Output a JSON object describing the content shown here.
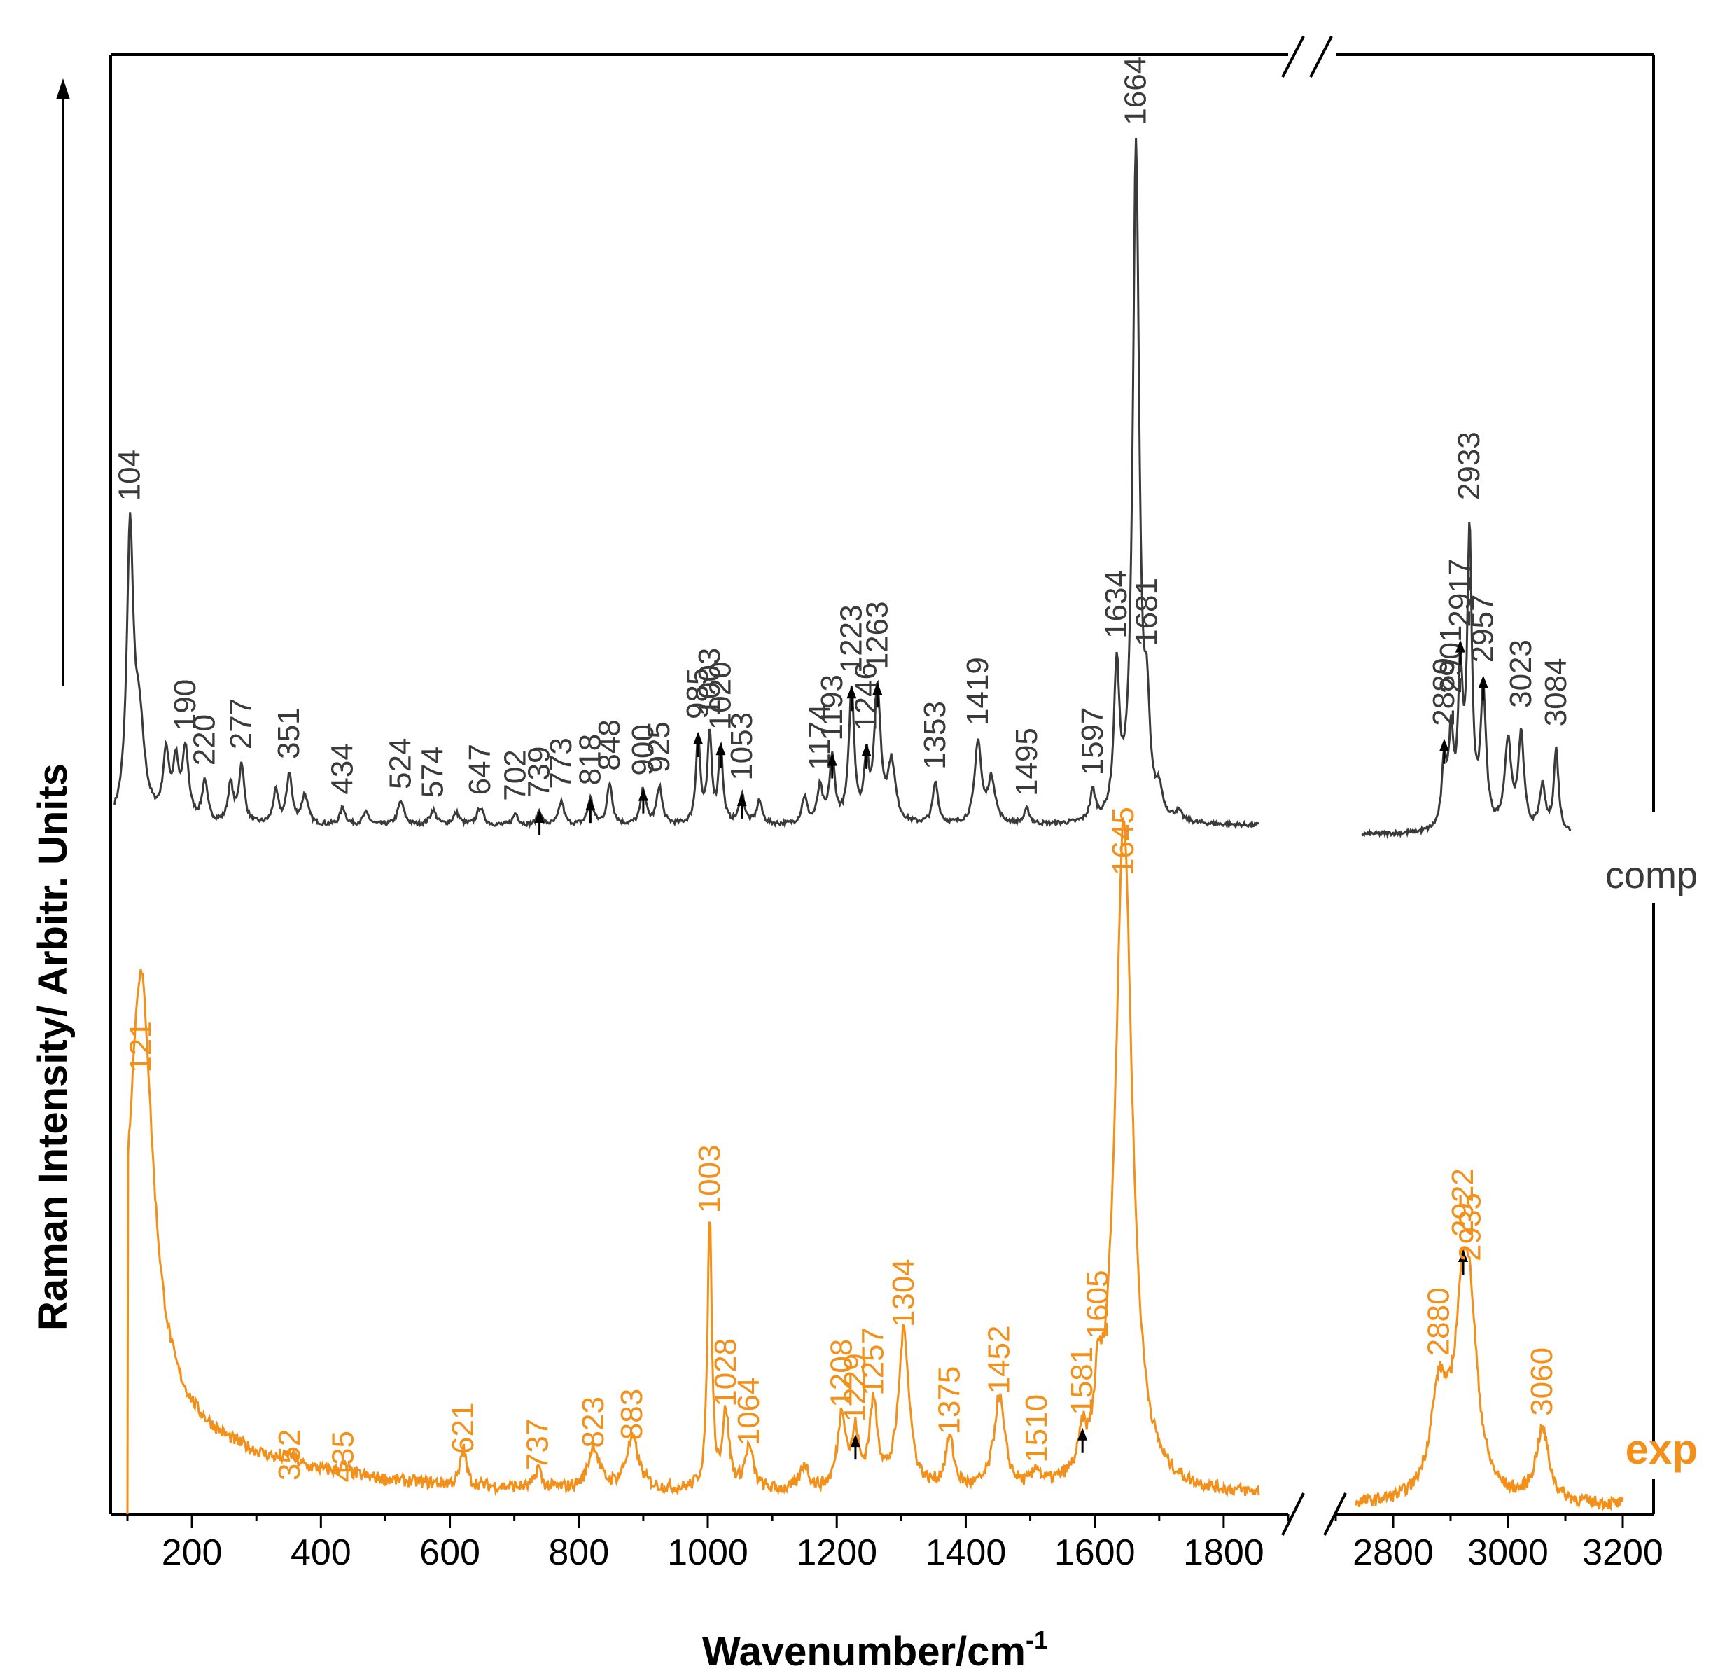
{
  "chart_data": {
    "type": "line",
    "title": "",
    "xlabel": "Wavenumber/cm",
    "xlabel_sup": "-1",
    "ylabel": "Raman Intensity/ Arbitr. Units",
    "xlim": [
      80,
      3250
    ],
    "axis_break": [
      1950,
      2700
    ],
    "x_ticks_left": [
      200,
      400,
      600,
      800,
      1000,
      1200,
      1400,
      1600,
      1800
    ],
    "x_ticks_right": [
      2800,
      3000,
      3200
    ],
    "colors": {
      "comp": "#3a3a3a",
      "exp": "#f39019",
      "axis": "#000000",
      "arrow": "#000000"
    },
    "series": [
      {
        "name": "comp",
        "label": "comp",
        "peaks": [
          {
            "x": 104,
            "h": 0.95,
            "w": 6
          },
          {
            "x": 118,
            "h": 0.32,
            "w": 10
          },
          {
            "x": 160,
            "h": 0.22,
            "w": 6
          },
          {
            "x": 175,
            "h": 0.18,
            "w": 5
          },
          {
            "x": 190,
            "h": 0.24,
            "w": 6
          },
          {
            "x": 220,
            "h": 0.14,
            "w": 5
          },
          {
            "x": 260,
            "h": 0.13,
            "w": 5
          },
          {
            "x": 277,
            "h": 0.2,
            "w": 5
          },
          {
            "x": 330,
            "h": 0.11,
            "w": 5
          },
          {
            "x": 351,
            "h": 0.17,
            "w": 5
          },
          {
            "x": 375,
            "h": 0.1,
            "w": 6
          },
          {
            "x": 434,
            "h": 0.06,
            "w": 5
          },
          {
            "x": 470,
            "h": 0.04,
            "w": 6
          },
          {
            "x": 524,
            "h": 0.08,
            "w": 6
          },
          {
            "x": 574,
            "h": 0.05,
            "w": 6
          },
          {
            "x": 610,
            "h": 0.04,
            "w": 6
          },
          {
            "x": 647,
            "h": 0.06,
            "w": 6
          },
          {
            "x": 702,
            "h": 0.04,
            "w": 5
          },
          {
            "x": 739,
            "h": 0.05,
            "w": 4
          },
          {
            "x": 773,
            "h": 0.08,
            "w": 5
          },
          {
            "x": 818,
            "h": 0.09,
            "w": 5
          },
          {
            "x": 848,
            "h": 0.14,
            "w": 5
          },
          {
            "x": 900,
            "h": 0.12,
            "w": 5
          },
          {
            "x": 925,
            "h": 0.13,
            "w": 5
          },
          {
            "x": 985,
            "h": 0.3,
            "w": 4
          },
          {
            "x": 1003,
            "h": 0.3,
            "w": 4
          },
          {
            "x": 1020,
            "h": 0.26,
            "w": 4
          },
          {
            "x": 1053,
            "h": 0.1,
            "w": 5
          },
          {
            "x": 1080,
            "h": 0.08,
            "w": 5
          },
          {
            "x": 1150,
            "h": 0.09,
            "w": 5
          },
          {
            "x": 1174,
            "h": 0.12,
            "w": 5
          },
          {
            "x": 1193,
            "h": 0.22,
            "w": 5
          },
          {
            "x": 1223,
            "h": 0.45,
            "w": 5
          },
          {
            "x": 1246,
            "h": 0.2,
            "w": 4
          },
          {
            "x": 1263,
            "h": 0.45,
            "w": 6
          },
          {
            "x": 1285,
            "h": 0.2,
            "w": 7
          },
          {
            "x": 1353,
            "h": 0.14,
            "w": 5
          },
          {
            "x": 1419,
            "h": 0.28,
            "w": 6
          },
          {
            "x": 1440,
            "h": 0.15,
            "w": 7
          },
          {
            "x": 1495,
            "h": 0.05,
            "w": 5
          },
          {
            "x": 1597,
            "h": 0.1,
            "w": 5
          },
          {
            "x": 1634,
            "h": 0.5,
            "w": 5
          },
          {
            "x": 1664,
            "h": 2.3,
            "w": 6
          },
          {
            "x": 1681,
            "h": 0.3,
            "w": 5
          },
          {
            "x": 1700,
            "h": 0.08,
            "w": 6
          },
          {
            "x": 1730,
            "h": 0.03,
            "w": 6
          },
          {
            "x": 2889,
            "h": 0.22,
            "w": 5
          },
          {
            "x": 2901,
            "h": 0.3,
            "w": 5
          },
          {
            "x": 2917,
            "h": 0.5,
            "w": 5
          },
          {
            "x": 2933,
            "h": 0.98,
            "w": 5
          },
          {
            "x": 2957,
            "h": 0.45,
            "w": 6
          },
          {
            "x": 3000,
            "h": 0.3,
            "w": 7
          },
          {
            "x": 3023,
            "h": 0.32,
            "w": 6
          },
          {
            "x": 3060,
            "h": 0.15,
            "w": 6
          },
          {
            "x": 3084,
            "h": 0.28,
            "w": 5
          }
        ]
      },
      {
        "name": "exp",
        "label": "exp",
        "peaks": [
          {
            "x": 121,
            "h": 1.0,
            "w": 22
          },
          {
            "x": 352,
            "h": 0.02,
            "w": 8
          },
          {
            "x": 435,
            "h": 0.02,
            "w": 8
          },
          {
            "x": 621,
            "h": 0.09,
            "w": 5
          },
          {
            "x": 737,
            "h": 0.05,
            "w": 5
          },
          {
            "x": 823,
            "h": 0.1,
            "w": 10
          },
          {
            "x": 883,
            "h": 0.12,
            "w": 12
          },
          {
            "x": 1003,
            "h": 0.65,
            "w": 4
          },
          {
            "x": 1028,
            "h": 0.18,
            "w": 6
          },
          {
            "x": 1064,
            "h": 0.1,
            "w": 8
          },
          {
            "x": 1150,
            "h": 0.06,
            "w": 8
          },
          {
            "x": 1208,
            "h": 0.18,
            "w": 8
          },
          {
            "x": 1229,
            "h": 0.12,
            "w": 6
          },
          {
            "x": 1257,
            "h": 0.2,
            "w": 8
          },
          {
            "x": 1304,
            "h": 0.38,
            "w": 10
          },
          {
            "x": 1375,
            "h": 0.12,
            "w": 8
          },
          {
            "x": 1452,
            "h": 0.22,
            "w": 10
          },
          {
            "x": 1510,
            "h": 0.04,
            "w": 6
          },
          {
            "x": 1581,
            "h": 0.08,
            "w": 6
          },
          {
            "x": 1605,
            "h": 0.14,
            "w": 6
          },
          {
            "x": 1645,
            "h": 1.6,
            "w": 16
          },
          {
            "x": 2880,
            "h": 0.24,
            "w": 18
          },
          {
            "x": 2922,
            "h": 0.42,
            "w": 18
          },
          {
            "x": 2935,
            "h": 0.25,
            "w": 16
          },
          {
            "x": 3060,
            "h": 0.17,
            "w": 14
          }
        ]
      }
    ],
    "annotations": {
      "comp": [
        {
          "text": "104",
          "x": 104,
          "tip": 104
        },
        {
          "text": "190",
          "x": 190
        },
        {
          "text": "220",
          "x": 220
        },
        {
          "text": "277",
          "x": 277
        },
        {
          "text": "351",
          "x": 351
        },
        {
          "text": "434",
          "x": 434
        },
        {
          "text": "524",
          "x": 524
        },
        {
          "text": "574",
          "x": 574
        },
        {
          "text": "647",
          "x": 647
        },
        {
          "text": "702",
          "x": 702
        },
        {
          "text": "739",
          "x": 739,
          "arrow": "up"
        },
        {
          "text": "773",
          "x": 773
        },
        {
          "text": "818",
          "x": 818,
          "arrow": "up"
        },
        {
          "text": "848",
          "x": 848
        },
        {
          "text": "900",
          "x": 900,
          "arrow": "up"
        },
        {
          "text": "925",
          "x": 925
        },
        {
          "text": "985",
          "x": 985,
          "arrow": "from-label"
        },
        {
          "text": "1003",
          "x": 1003
        },
        {
          "text": "1020",
          "x": 1020,
          "arrow": "to-label"
        },
        {
          "text": "1053",
          "x": 1053,
          "arrow": "to-label"
        },
        {
          "text": "1174",
          "x": 1174
        },
        {
          "text": "1193",
          "x": 1193,
          "arrow": "from-label"
        },
        {
          "text": "1223",
          "x": 1223,
          "arrow": "from-label"
        },
        {
          "text": "1246",
          "x": 1246,
          "arrow": "up"
        },
        {
          "text": "1263",
          "x": 1263,
          "arrow": "to-label"
        },
        {
          "text": "1353",
          "x": 1353
        },
        {
          "text": "1419",
          "x": 1419
        },
        {
          "text": "1495",
          "x": 1495
        },
        {
          "text": "1597",
          "x": 1597
        },
        {
          "text": "1634",
          "x": 1634
        },
        {
          "text": "1664",
          "x": 1664
        },
        {
          "text": "1681",
          "x": 1681
        },
        {
          "text": "2889",
          "x": 2889,
          "arrow": "from-label"
        },
        {
          "text": "2901",
          "x": 2901
        },
        {
          "text": "2917",
          "x": 2917,
          "arrow": "from-label"
        },
        {
          "text": "2933",
          "x": 2933
        },
        {
          "text": "2957",
          "x": 2957,
          "arrow": "to-label"
        },
        {
          "text": "3023",
          "x": 3023
        },
        {
          "text": "3084",
          "x": 3084
        }
      ],
      "exp": [
        {
          "text": "121",
          "x": 121
        },
        {
          "text": "352",
          "x": 352
        },
        {
          "text": "435",
          "x": 435
        },
        {
          "text": "621",
          "x": 621
        },
        {
          "text": "737",
          "x": 737
        },
        {
          "text": "823",
          "x": 823
        },
        {
          "text": "883",
          "x": 883
        },
        {
          "text": "1003",
          "x": 1003
        },
        {
          "text": "1028",
          "x": 1028
        },
        {
          "text": "1064",
          "x": 1064
        },
        {
          "text": "1208",
          "x": 1208
        },
        {
          "text": "1229",
          "x": 1229,
          "arrow": "from-label"
        },
        {
          "text": "1257",
          "x": 1257
        },
        {
          "text": "1304",
          "x": 1304
        },
        {
          "text": "1375",
          "x": 1375
        },
        {
          "text": "1452",
          "x": 1452
        },
        {
          "text": "1510",
          "x": 1510
        },
        {
          "text": "1581",
          "x": 1581,
          "arrow": "from-label"
        },
        {
          "text": "1605",
          "x": 1605
        },
        {
          "text": "1645",
          "x": 1645
        },
        {
          "text": "2880",
          "x": 2880
        },
        {
          "text": "2922",
          "x": 2922,
          "arrow": "from-label"
        },
        {
          "text": "2935",
          "x": 2935
        },
        {
          "text": "3060",
          "x": 3060
        }
      ]
    }
  }
}
